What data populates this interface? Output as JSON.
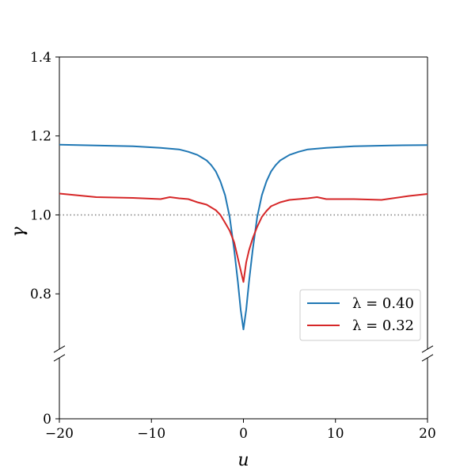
{
  "chart_data": {
    "type": "line",
    "title": "",
    "xlabel": "u",
    "ylabel": "γ",
    "xlim": [
      -20,
      20
    ],
    "ylim_upper": [
      0.66,
      1.4
    ],
    "ylim_lower": [
      0,
      0.14
    ],
    "broken_y_axis": true,
    "grid": false,
    "legend_position": "lower-right",
    "x_ticks": [
      -20,
      -10,
      0,
      10,
      20
    ],
    "x_tick_labels": [
      "−20",
      "−10",
      "0",
      "10",
      "20"
    ],
    "y_ticks_upper": [
      0.8,
      1.0,
      1.2,
      1.4
    ],
    "y_tick_labels_upper": [
      "0.8",
      "1.0",
      "1.2",
      "1.4"
    ],
    "y_ticks_lower": [
      0
    ],
    "y_tick_labels_lower": [
      "0"
    ],
    "reference_line": {
      "y": 1.0,
      "style": "dotted",
      "color": "#808080"
    },
    "series": [
      {
        "name": "λ = 0.40",
        "color": "#1f77b4",
        "x": [
          -20,
          -16,
          -12,
          -9,
          -7,
          -6,
          -5,
          -4,
          -3.5,
          -3,
          -2.5,
          -2,
          -1.5,
          -1,
          -0.6,
          -0.3,
          0,
          0.3,
          0.6,
          1,
          1.5,
          2,
          2.5,
          3,
          3.5,
          4,
          5,
          6,
          7,
          9,
          12,
          16,
          20
        ],
        "y": [
          1.178,
          1.176,
          1.174,
          1.17,
          1.166,
          1.16,
          1.152,
          1.138,
          1.126,
          1.11,
          1.085,
          1.05,
          0.995,
          0.91,
          0.83,
          0.76,
          0.71,
          0.76,
          0.83,
          0.91,
          0.995,
          1.05,
          1.085,
          1.11,
          1.126,
          1.138,
          1.152,
          1.16,
          1.166,
          1.17,
          1.174,
          1.176,
          1.177
        ]
      },
      {
        "name": "λ = 0.32",
        "color": "#d62728",
        "x": [
          -20,
          -16,
          -12,
          -9,
          -8,
          -7,
          -6,
          -5,
          -4,
          -3,
          -2.5,
          -2,
          -1.5,
          -1,
          -0.6,
          -0.3,
          0,
          0.3,
          0.6,
          1,
          1.5,
          2,
          2.5,
          3,
          4,
          5,
          6,
          7,
          8,
          9,
          12,
          15,
          18,
          20
        ],
        "y": [
          1.054,
          1.045,
          1.043,
          1.04,
          1.045,
          1.042,
          1.04,
          1.032,
          1.026,
          1.012,
          1.0,
          0.98,
          0.96,
          0.93,
          0.89,
          0.86,
          0.83,
          0.88,
          0.91,
          0.94,
          0.97,
          0.995,
          1.01,
          1.022,
          1.032,
          1.038,
          1.04,
          1.042,
          1.045,
          1.04,
          1.04,
          1.038,
          1.048,
          1.053
        ]
      }
    ]
  }
}
